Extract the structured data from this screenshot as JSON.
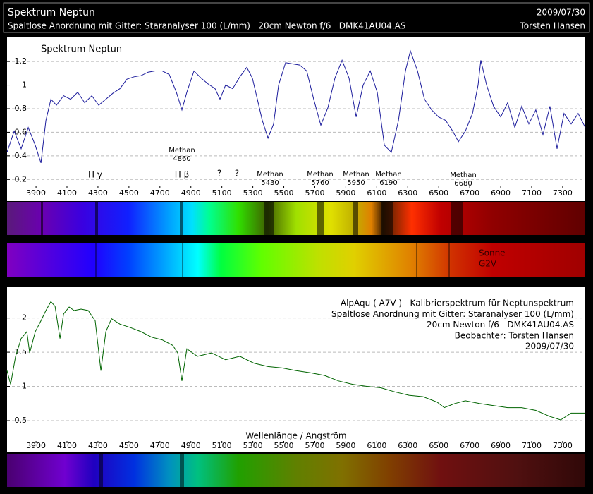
{
  "header": {
    "title": "Spektrum Neptun",
    "subtitle": "Spaltlose Anordnung mit Gitter: Staranalyser 100 (L/mm)   20cm Newton f/6   DMK41AU04.AS",
    "date": "2009/07/30",
    "author": "Torsten Hansen"
  },
  "spectra": {
    "label": [
      "Sonne",
      "G2V"
    ]
  },
  "chart_data": [
    {
      "type": "line",
      "title": "Spektrum Neptun",
      "color": "#1c1c9c",
      "grid": true,
      "xlim": [
        3713,
        7446
      ],
      "ylim": [
        0.13,
        1.41
      ],
      "xticks": [
        3900,
        4100,
        4300,
        4500,
        4700,
        4900,
        5100,
        5300,
        5500,
        5700,
        5900,
        6100,
        6300,
        6500,
        6700,
        6900,
        7100,
        7300
      ],
      "yticks": [
        0.2,
        0.4,
        0.6,
        0.8,
        1,
        1.2
      ],
      "x": [
        3713,
        3759,
        3804,
        3850,
        3895,
        3932,
        3964,
        3996,
        4032,
        4078,
        4123,
        4169,
        4214,
        4260,
        4305,
        4351,
        4396,
        4442,
        4487,
        4533,
        4578,
        4624,
        4669,
        4715,
        4760,
        4806,
        4842,
        4874,
        4920,
        4965,
        5011,
        5056,
        5088,
        5124,
        5170,
        5216,
        5261,
        5297,
        5329,
        5361,
        5398,
        5434,
        5466,
        5511,
        5557,
        5602,
        5648,
        5693,
        5739,
        5785,
        5830,
        5876,
        5921,
        5967,
        6012,
        6058,
        6103,
        6149,
        6194,
        6240,
        6285,
        6317,
        6363,
        6408,
        6454,
        6499,
        6545,
        6590,
        6627,
        6672,
        6718,
        6754,
        6772,
        6809,
        6854,
        6900,
        6945,
        6991,
        7036,
        7082,
        7127,
        7173,
        7218,
        7264,
        7309,
        7355,
        7400,
        7446
      ],
      "values": [
        0.43,
        0.61,
        0.46,
        0.64,
        0.49,
        0.34,
        0.7,
        0.88,
        0.83,
        0.91,
        0.88,
        0.94,
        0.85,
        0.91,
        0.83,
        0.88,
        0.93,
        0.97,
        1.05,
        1.07,
        1.08,
        1.11,
        1.12,
        1.12,
        1.09,
        0.94,
        0.79,
        0.94,
        1.12,
        1.06,
        1.01,
        0.97,
        0.88,
        1.0,
        0.97,
        1.07,
        1.15,
        1.06,
        0.88,
        0.7,
        0.55,
        0.67,
        1.0,
        1.19,
        1.18,
        1.17,
        1.12,
        0.88,
        0.66,
        0.81,
        1.06,
        1.21,
        1.06,
        0.73,
        1.0,
        1.12,
        0.94,
        0.49,
        0.43,
        0.7,
        1.12,
        1.29,
        1.12,
        0.88,
        0.79,
        0.73,
        0.7,
        0.61,
        0.52,
        0.61,
        0.76,
        1.0,
        1.21,
        1.0,
        0.82,
        0.73,
        0.85,
        0.64,
        0.82,
        0.67,
        0.79,
        0.58,
        0.82,
        0.46,
        0.76,
        0.67,
        0.76,
        0.64
      ],
      "annotations": [
        [
          "H γ"
        ],
        [
          "Methan",
          "4860"
        ],
        [
          "H β"
        ],
        [
          "?"
        ],
        [
          "?"
        ],
        [
          "Methan",
          "5430"
        ],
        [
          "Methan",
          "5760"
        ],
        [
          "Methan",
          "5950"
        ],
        [
          "Methan",
          "6190"
        ],
        [
          "Methan",
          "6680"
        ]
      ]
    },
    {
      "type": "line",
      "color": "#006400",
      "grid": true,
      "xlabel": "Wellenlänge / Angström",
      "notes": [
        "AlpAqu ( A7V )   Kalibrierspektrum für Neptunspektrum",
        "Spaltlose Anordnung mit Gitter: Staranalyser 100 (L/mm)",
        "20cm Newton f/6   DMK41AU04.AS",
        "Beobachter: Torsten Hansen",
        "2009/07/30"
      ],
      "xlim": [
        3713,
        7446
      ],
      "ylim": [
        0.17,
        2.45
      ],
      "xticks": [
        3900,
        4100,
        4300,
        4500,
        4700,
        4900,
        5100,
        5300,
        5500,
        5700,
        5900,
        6100,
        6300,
        6500,
        6700,
        6900,
        7100,
        7300
      ],
      "yticks": [
        0.5,
        1,
        1.5,
        2
      ],
      "x": [
        3713,
        3736,
        3768,
        3804,
        3841,
        3859,
        3895,
        3932,
        3964,
        3996,
        4023,
        4055,
        4078,
        4114,
        4146,
        4191,
        4237,
        4282,
        4319,
        4351,
        4387,
        4442,
        4510,
        4578,
        4647,
        4715,
        4783,
        4815,
        4842,
        4874,
        4942,
        5033,
        5124,
        5216,
        5307,
        5398,
        5489,
        5580,
        5671,
        5762,
        5853,
        5944,
        6035,
        6126,
        6217,
        6308,
        6399,
        6490,
        6536,
        6604,
        6672,
        6763,
        6854,
        6945,
        7036,
        7127,
        7218,
        7287,
        7355,
        7446
      ],
      "values": [
        1.23,
        1.03,
        1.44,
        1.7,
        1.8,
        1.49,
        1.8,
        1.96,
        2.11,
        2.24,
        2.17,
        1.7,
        2.06,
        2.16,
        2.11,
        2.13,
        2.11,
        1.96,
        1.23,
        1.8,
        1.99,
        1.91,
        1.86,
        1.8,
        1.72,
        1.68,
        1.6,
        1.49,
        1.08,
        1.55,
        1.44,
        1.49,
        1.39,
        1.44,
        1.34,
        1.29,
        1.27,
        1.23,
        1.2,
        1.16,
        1.08,
        1.03,
        1.0,
        0.98,
        0.92,
        0.87,
        0.85,
        0.77,
        0.69,
        0.75,
        0.79,
        0.75,
        0.72,
        0.69,
        0.69,
        0.65,
        0.56,
        0.51,
        0.61,
        0.61
      ]
    }
  ]
}
